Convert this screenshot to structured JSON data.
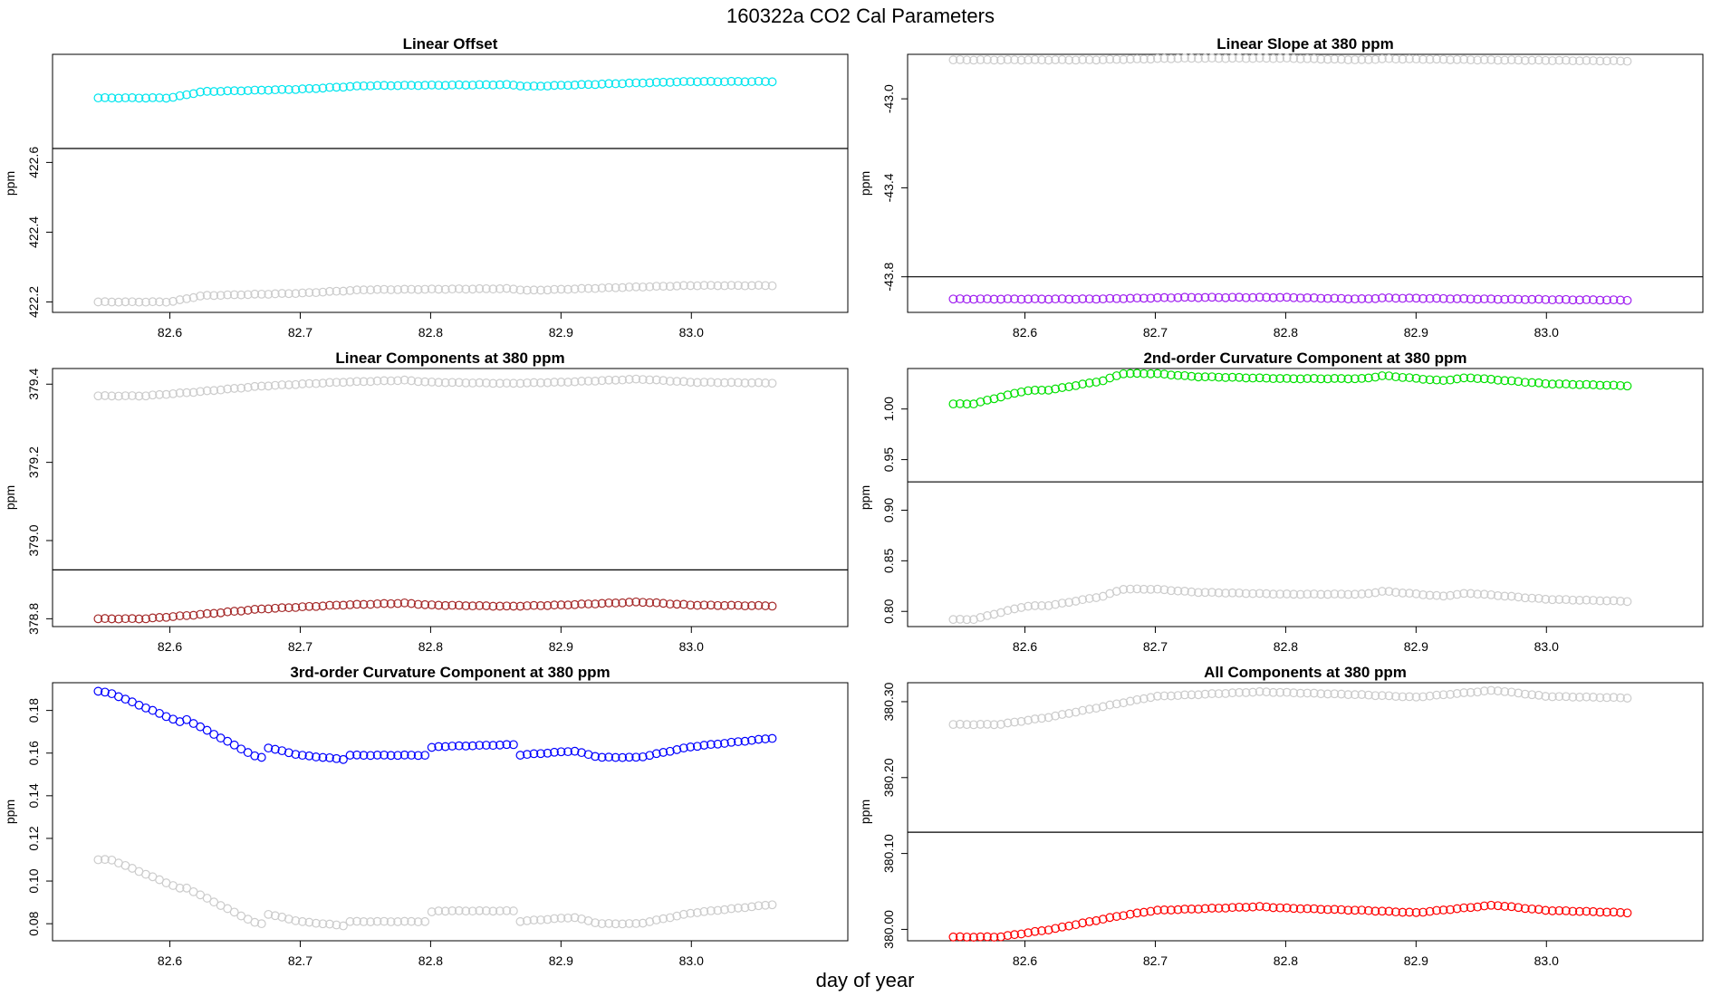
{
  "figure": {
    "title": "160322a   CO2 Cal Parameters",
    "xlabel": "day of year"
  },
  "chart_data": [
    {
      "type": "scatter",
      "title": "Linear Offset",
      "xlabel": "",
      "ylabel": "ppm",
      "xlim": [
        82.51,
        83.12
      ],
      "ylim": [
        422.17,
        422.91
      ],
      "x_ticks": [
        82.6,
        82.7,
        82.8,
        82.9,
        83.0
      ],
      "x_tick_labels": [
        "82.6",
        "82.7",
        "82.8",
        "82.9",
        "83.0"
      ],
      "y_ticks": [
        422.2,
        422.4,
        422.6
      ],
      "y_tick_labels": [
        "422.2",
        "422.4",
        "422.6"
      ],
      "reference_line": 422.64,
      "x_range": [
        82.545,
        83.062
      ],
      "series": [
        {
          "color": "#00e5ee",
          "stroke_color": "#00e5ee",
          "knots": [
            [
              82.545,
              422.785
            ],
            [
              82.6,
              422.785
            ],
            [
              82.625,
              422.803
            ],
            [
              82.7,
              422.81
            ],
            [
              82.75,
              422.82
            ],
            [
              82.86,
              422.823
            ],
            [
              82.875,
              422.818
            ],
            [
              82.95,
              422.827
            ],
            [
              83.0,
              422.832
            ],
            [
              83.062,
              422.832
            ]
          ]
        },
        {
          "color": "#d3d3d3",
          "stroke_color": "#cccccc",
          "knots": [
            [
              82.545,
              422.2
            ],
            [
              82.6,
              422.2
            ],
            [
              82.625,
              422.218
            ],
            [
              82.7,
              422.225
            ],
            [
              82.75,
              422.235
            ],
            [
              82.86,
              422.238
            ],
            [
              82.875,
              422.233
            ],
            [
              82.95,
              422.242
            ],
            [
              83.0,
              422.247
            ],
            [
              83.062,
              422.247
            ]
          ]
        }
      ]
    },
    {
      "type": "scatter",
      "title": "Linear Slope at 380 ppm",
      "xlabel": "",
      "ylabel": "ppm",
      "xlim": [
        82.51,
        83.12
      ],
      "ylim": [
        -43.96,
        -42.8
      ],
      "x_ticks": [
        82.6,
        82.7,
        82.8,
        82.9,
        83.0
      ],
      "x_tick_labels": [
        "82.6",
        "82.7",
        "82.8",
        "82.9",
        "83.0"
      ],
      "y_ticks": [
        -43.8,
        -43.4,
        -43.0
      ],
      "y_tick_labels": [
        "-43.8",
        "-43.4",
        "-43.0"
      ],
      "reference_line": -43.8,
      "x_range": [
        82.545,
        83.062
      ],
      "series": [
        {
          "color": "#a020f0",
          "stroke_color": "#a020f0",
          "knots": [
            [
              82.545,
              -43.9
            ],
            [
              82.65,
              -43.9
            ],
            [
              82.72,
              -43.893
            ],
            [
              82.8,
              -43.893
            ],
            [
              82.86,
              -43.9
            ],
            [
              82.875,
              -43.895
            ],
            [
              82.95,
              -43.9
            ],
            [
              83.062,
              -43.905
            ]
          ]
        },
        {
          "color": "#d3d3d3",
          "stroke_color": "#cccccc",
          "knots": [
            [
              82.545,
              -42.825
            ],
            [
              82.65,
              -42.825
            ],
            [
              82.72,
              -42.818
            ],
            [
              82.8,
              -42.818
            ],
            [
              82.86,
              -42.825
            ],
            [
              82.875,
              -42.82
            ],
            [
              82.95,
              -42.825
            ],
            [
              83.062,
              -42.83
            ]
          ]
        }
      ]
    },
    {
      "type": "scatter",
      "title": "Linear Components at 380 ppm",
      "xlabel": "",
      "ylabel": "ppm",
      "xlim": [
        82.51,
        83.12
      ],
      "ylim": [
        378.78,
        379.44
      ],
      "x_ticks": [
        82.6,
        82.7,
        82.8,
        82.9,
        83.0
      ],
      "x_tick_labels": [
        "82.6",
        "82.7",
        "82.8",
        "82.9",
        "83.0"
      ],
      "y_ticks": [
        378.8,
        379.0,
        379.2,
        379.4
      ],
      "y_tick_labels": [
        "378.8",
        "379.0",
        "379.2",
        "379.4"
      ],
      "reference_line": 378.925,
      "x_range": [
        82.545,
        83.062
      ],
      "series": [
        {
          "color": "#a52a2a",
          "stroke_color": "#a52a2a",
          "knots": [
            [
              82.545,
              378.8
            ],
            [
              82.58,
              378.8
            ],
            [
              82.62,
              378.81
            ],
            [
              82.67,
              378.825
            ],
            [
              82.73,
              378.835
            ],
            [
              82.78,
              378.84
            ],
            [
              82.8,
              378.835
            ],
            [
              82.86,
              378.832
            ],
            [
              82.9,
              378.835
            ],
            [
              82.96,
              378.843
            ],
            [
              83.0,
              378.835
            ],
            [
              83.062,
              378.833
            ]
          ]
        },
        {
          "color": "#d3d3d3",
          "stroke_color": "#cccccc",
          "knots": [
            [
              82.545,
              379.37
            ],
            [
              82.58,
              379.37
            ],
            [
              82.62,
              379.38
            ],
            [
              82.67,
              379.395
            ],
            [
              82.73,
              379.405
            ],
            [
              82.78,
              379.41
            ],
            [
              82.8,
              379.405
            ],
            [
              82.86,
              379.402
            ],
            [
              82.9,
              379.405
            ],
            [
              82.96,
              379.413
            ],
            [
              83.0,
              379.405
            ],
            [
              83.062,
              379.403
            ]
          ]
        }
      ]
    },
    {
      "type": "scatter",
      "title": "2nd-order Curvature Component at 380 ppm",
      "xlabel": "",
      "ylabel": "ppm",
      "xlim": [
        82.51,
        83.12
      ],
      "ylim": [
        0.785,
        1.04
      ],
      "x_ticks": [
        82.6,
        82.7,
        82.8,
        82.9,
        83.0
      ],
      "x_tick_labels": [
        "82.6",
        "82.7",
        "82.8",
        "82.9",
        "83.0"
      ],
      "y_ticks": [
        0.8,
        0.85,
        0.9,
        0.95,
        1.0
      ],
      "y_tick_labels": [
        "0.80",
        "0.85",
        "0.90",
        "0.95",
        "1.00"
      ],
      "reference_line": 0.928,
      "x_range": [
        82.545,
        83.062
      ],
      "series": [
        {
          "color": "#00ee00",
          "stroke_color": "#00e000",
          "knots": [
            [
              82.545,
              1.005
            ],
            [
              82.56,
              1.005
            ],
            [
              82.6,
              1.018
            ],
            [
              82.62,
              1.019
            ],
            [
              82.66,
              1.028
            ],
            [
              82.675,
              1.035
            ],
            [
              82.7,
              1.035
            ],
            [
              82.73,
              1.032
            ],
            [
              82.8,
              1.03
            ],
            [
              82.86,
              1.03
            ],
            [
              82.875,
              1.033
            ],
            [
              82.92,
              1.028
            ],
            [
              82.94,
              1.031
            ],
            [
              83.0,
              1.025
            ],
            [
              83.062,
              1.023
            ]
          ]
        },
        {
          "color": "#d3d3d3",
          "stroke_color": "#cccccc",
          "knots": [
            [
              82.545,
              0.792
            ],
            [
              82.56,
              0.792
            ],
            [
              82.6,
              0.805
            ],
            [
              82.62,
              0.806
            ],
            [
              82.66,
              0.815
            ],
            [
              82.675,
              0.822
            ],
            [
              82.7,
              0.822
            ],
            [
              82.73,
              0.819
            ],
            [
              82.8,
              0.817
            ],
            [
              82.86,
              0.817
            ],
            [
              82.875,
              0.82
            ],
            [
              82.92,
              0.815
            ],
            [
              82.94,
              0.818
            ],
            [
              83.0,
              0.812
            ],
            [
              83.062,
              0.81
            ]
          ]
        }
      ]
    },
    {
      "type": "scatter",
      "title": "3rd-order Curvature Component at 380 ppm",
      "xlabel": "",
      "ylabel": "ppm",
      "xlim": [
        82.51,
        83.12
      ],
      "ylim": [
        0.072,
        0.193
      ],
      "x_ticks": [
        82.6,
        82.7,
        82.8,
        82.9,
        83.0
      ],
      "x_tick_labels": [
        "82.6",
        "82.7",
        "82.8",
        "82.9",
        "83.0"
      ],
      "y_ticks": [
        0.08,
        0.1,
        0.12,
        0.14,
        0.16,
        0.18
      ],
      "y_tick_labels": [
        "0.08",
        "0.10",
        "0.12",
        "0.14",
        "0.16",
        "0.18"
      ],
      "reference_line": null,
      "x_range": [
        82.545,
        83.062
      ],
      "series": [
        {
          "color": "#0000ff",
          "stroke_color": "#0000ff",
          "knots": [
            [
              82.545,
              0.189
            ],
            [
              82.555,
              0.188
            ],
            [
              82.61,
              0.174
            ],
            [
              82.612,
              0.176
            ],
            [
              82.67,
              0.157
            ],
            [
              82.672,
              0.163
            ],
            [
              82.7,
              0.159
            ],
            [
              82.735,
              0.157
            ],
            [
              82.736,
              0.159
            ],
            [
              82.8,
              0.159
            ],
            [
              82.801,
              0.163
            ],
            [
              82.865,
              0.164
            ],
            [
              82.866,
              0.159
            ],
            [
              82.91,
              0.161
            ],
            [
              82.93,
              0.158
            ],
            [
              82.96,
              0.158
            ],
            [
              83.0,
              0.163
            ],
            [
              83.062,
              0.167
            ]
          ]
        },
        {
          "color": "#d3d3d3",
          "stroke_color": "#cccccc",
          "knots": [
            [
              82.545,
              0.11
            ],
            [
              82.555,
              0.11
            ],
            [
              82.61,
              0.096
            ],
            [
              82.612,
              0.097
            ],
            [
              82.67,
              0.079
            ],
            [
              82.672,
              0.085
            ],
            [
              82.7,
              0.081
            ],
            [
              82.735,
              0.079
            ],
            [
              82.736,
              0.081
            ],
            [
              82.8,
              0.081
            ],
            [
              82.801,
              0.086
            ],
            [
              82.865,
              0.086
            ],
            [
              82.866,
              0.081
            ],
            [
              82.91,
              0.083
            ],
            [
              82.93,
              0.08
            ],
            [
              82.96,
              0.08
            ],
            [
              83.0,
              0.085
            ],
            [
              83.062,
              0.089
            ]
          ]
        }
      ]
    },
    {
      "type": "scatter",
      "title": "All Components at 380 ppm",
      "xlabel": "",
      "ylabel": "ppm",
      "xlim": [
        82.51,
        83.12
      ],
      "ylim": [
        379.985,
        380.325
      ],
      "x_ticks": [
        82.6,
        82.7,
        82.8,
        82.9,
        83.0
      ],
      "x_tick_labels": [
        "82.6",
        "82.7",
        "82.8",
        "82.9",
        "83.0"
      ],
      "y_ticks": [
        380.0,
        380.1,
        380.2,
        380.3
      ],
      "y_tick_labels": [
        "380.00",
        "380.10",
        "380.20",
        "380.30"
      ],
      "reference_line": 380.128,
      "x_range": [
        82.545,
        83.062
      ],
      "series": [
        {
          "color": "#ff0000",
          "stroke_color": "#ff0000",
          "knots": [
            [
              82.545,
              379.99
            ],
            [
              82.58,
              379.99
            ],
            [
              82.62,
              380.0
            ],
            [
              82.67,
              380.017
            ],
            [
              82.7,
              380.025
            ],
            [
              82.78,
              380.03
            ],
            [
              82.8,
              380.028
            ],
            [
              82.86,
              380.025
            ],
            [
              82.9,
              380.022
            ],
            [
              82.96,
              380.032
            ],
            [
              83.0,
              380.025
            ],
            [
              83.062,
              380.022
            ]
          ]
        },
        {
          "color": "#d3d3d3",
          "stroke_color": "#cccccc",
          "knots": [
            [
              82.545,
              380.27
            ],
            [
              82.58,
              380.27
            ],
            [
              82.62,
              380.28
            ],
            [
              82.67,
              380.297
            ],
            [
              82.7,
              380.307
            ],
            [
              82.78,
              380.313
            ],
            [
              82.8,
              380.312
            ],
            [
              82.86,
              380.309
            ],
            [
              82.9,
              380.306
            ],
            [
              82.96,
              380.315
            ],
            [
              83.0,
              380.307
            ],
            [
              83.062,
              380.305
            ]
          ]
        }
      ]
    }
  ]
}
